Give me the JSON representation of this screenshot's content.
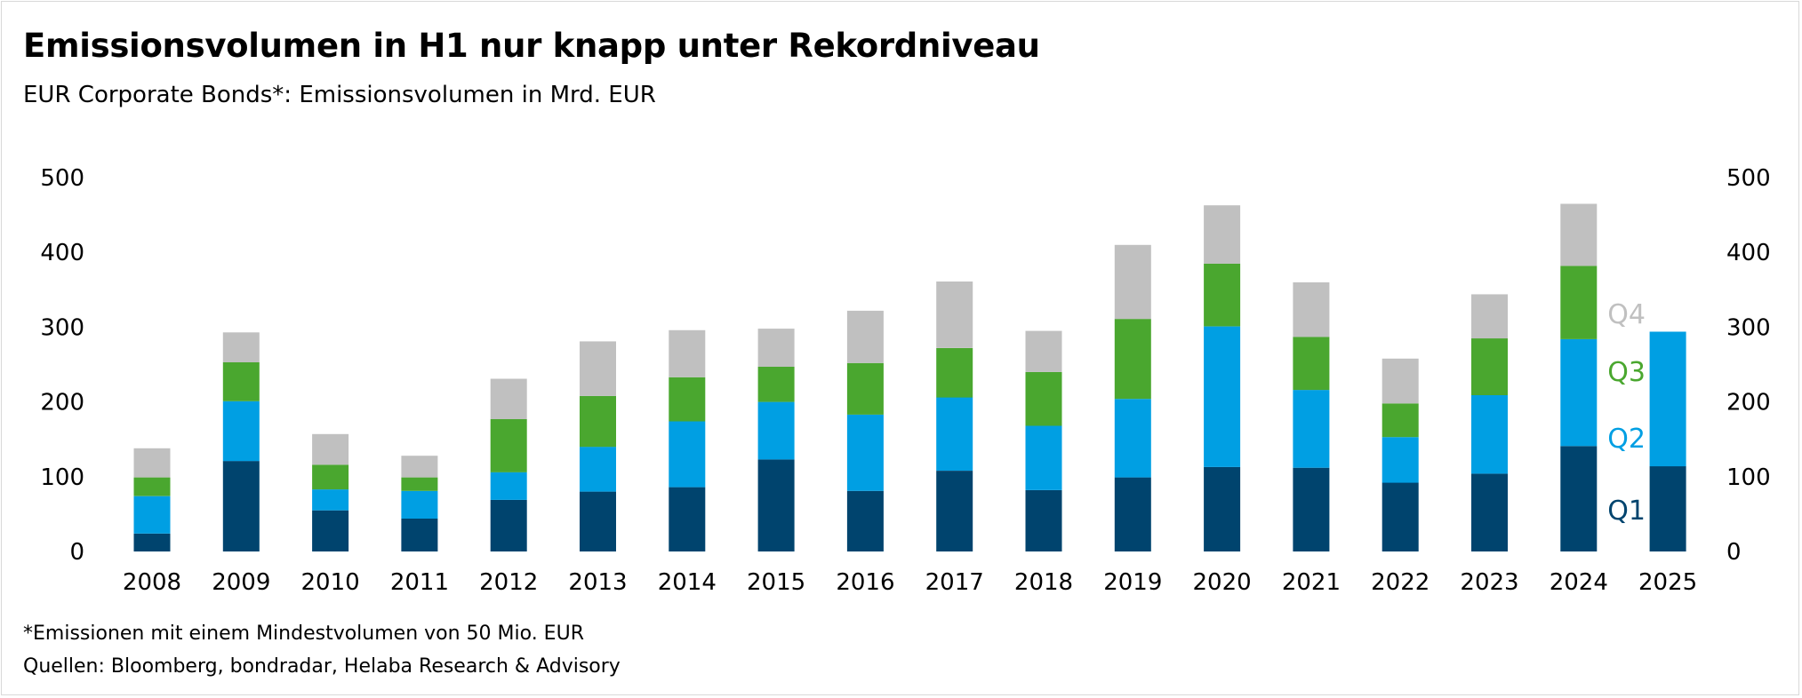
{
  "title": "Emissionsvolumen in H1 nur knapp unter Rekordniveau",
  "subtitle": "EUR Corporate Bonds*: Emissionsvolumen in Mrd. EUR",
  "footnotes": [
    "*Emissionen mit einem Mindestvolumen von 50 Mio. EUR",
    "Quellen: Bloomberg, bondradar, Helaba Research & Advisory"
  ],
  "colors": {
    "Q1": "#00446e",
    "Q2": "#009fe3",
    "Q3": "#4aa72f",
    "Q4": "#c0c0c0"
  },
  "chart_data": {
    "type": "bar",
    "stacked": true,
    "categories": [
      "2008",
      "2009",
      "2010",
      "2011",
      "2012",
      "2013",
      "2014",
      "2015",
      "2016",
      "2017",
      "2018",
      "2019",
      "2020",
      "2021",
      "2022",
      "2023",
      "2024",
      "2025"
    ],
    "series": [
      {
        "name": "Q1",
        "values": [
          24,
          121,
          55,
          44,
          69,
          80,
          86,
          123,
          81,
          108,
          82,
          99,
          113,
          112,
          92,
          104,
          141,
          114
        ]
      },
      {
        "name": "Q2",
        "values": [
          50,
          80,
          28,
          37,
          37,
          60,
          88,
          77,
          102,
          98,
          86,
          105,
          188,
          104,
          61,
          105,
          143,
          180
        ]
      },
      {
        "name": "Q3",
        "values": [
          25,
          52,
          33,
          18,
          71,
          68,
          59,
          47,
          69,
          66,
          72,
          107,
          84,
          71,
          45,
          76,
          98,
          0
        ]
      },
      {
        "name": "Q4",
        "values": [
          39,
          40,
          41,
          29,
          54,
          73,
          63,
          51,
          70,
          89,
          55,
          99,
          78,
          73,
          60,
          59,
          83,
          0
        ]
      }
    ],
    "ylim": [
      0,
      500
    ],
    "yticks": [
      "0",
      "100",
      "200",
      "300",
      "400",
      "500"
    ],
    "secondary_axis": true,
    "grid": false,
    "legend": "right, inline labels"
  }
}
